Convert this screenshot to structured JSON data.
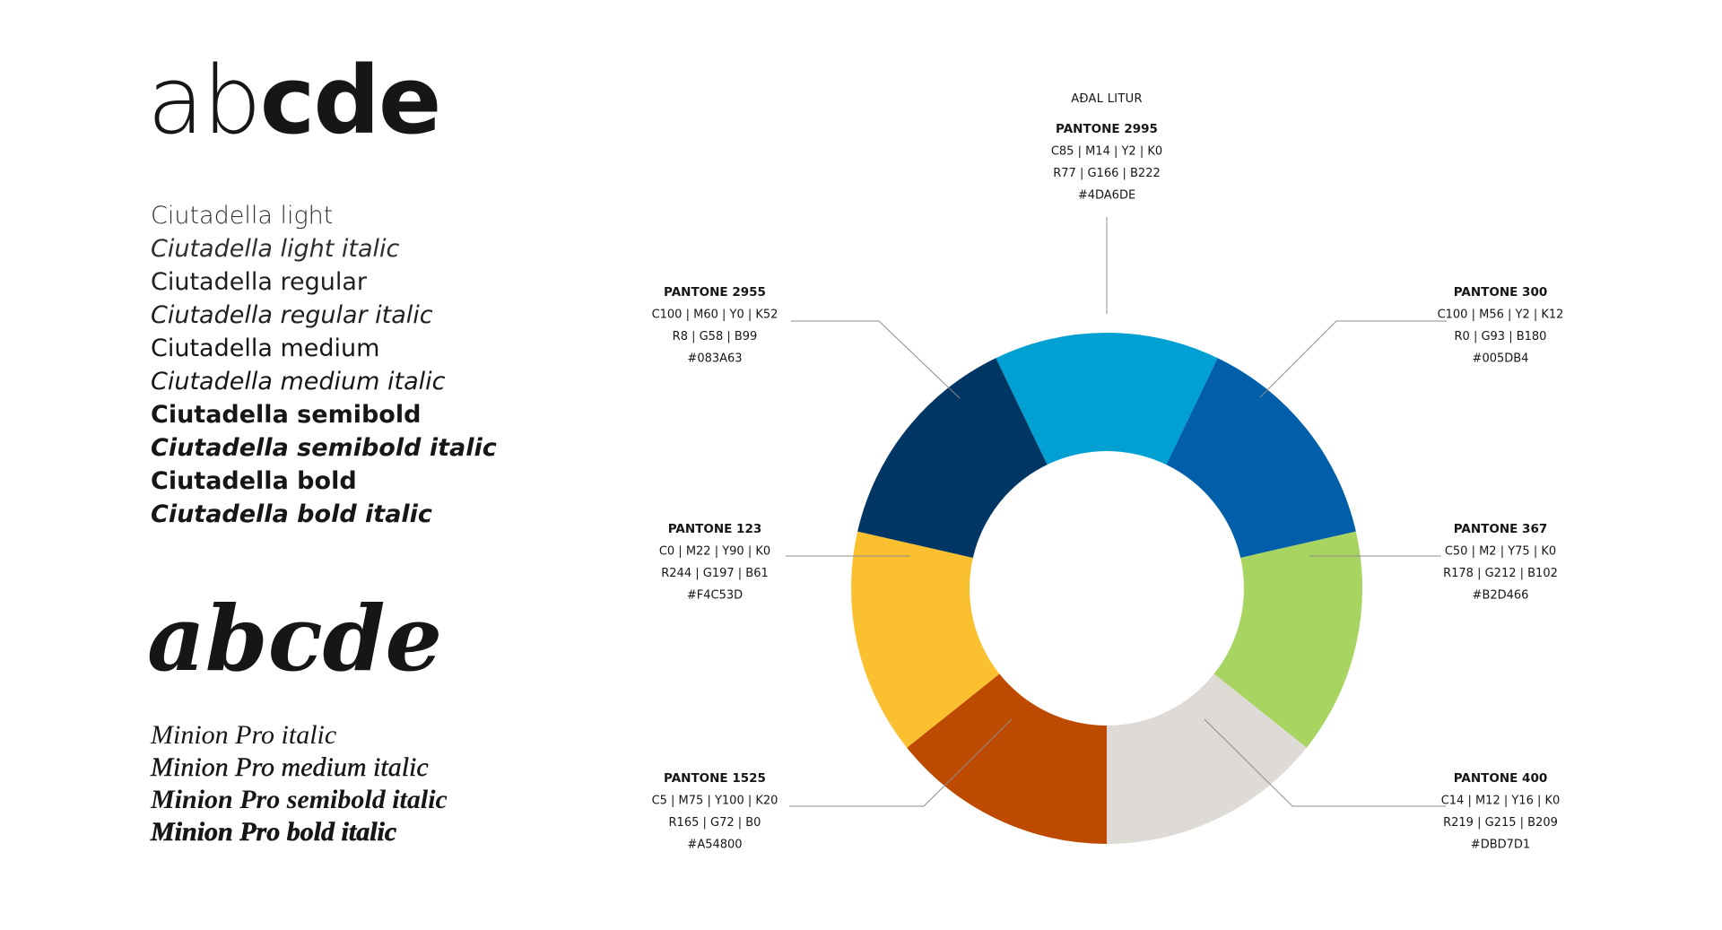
{
  "typography": {
    "sans": {
      "sample_light": "ab",
      "sample_heavy": "cde",
      "weights": [
        {
          "label": "Ciutadella light",
          "weight": "light",
          "italic": false
        },
        {
          "label": "Ciutadella light italic",
          "weight": "light",
          "italic": true
        },
        {
          "label": "Ciutadella regular",
          "weight": "regular",
          "italic": false
        },
        {
          "label": "Ciutadella regular italic",
          "weight": "regular",
          "italic": true
        },
        {
          "label": "Ciutadella medium",
          "weight": "medium",
          "italic": false
        },
        {
          "label": "Ciutadella medium italic",
          "weight": "medium",
          "italic": true
        },
        {
          "label": "Ciutadella semibold",
          "weight": "semibold",
          "italic": false
        },
        {
          "label": "Ciutadella semibold italic",
          "weight": "semibold",
          "italic": true
        },
        {
          "label": "Ciutadella bold",
          "weight": "bold",
          "italic": false
        },
        {
          "label": "Ciutadella bold italic",
          "weight": "bold",
          "italic": true
        }
      ]
    },
    "serif": {
      "sample": "abcde",
      "weights": [
        {
          "label": "Minion Pro italic",
          "weight": "regular"
        },
        {
          "label": "Minion Pro medium italic",
          "weight": "medium"
        },
        {
          "label": "Minion Pro semibold italic",
          "weight": "semibold"
        },
        {
          "label": "Minion Pro bold italic",
          "weight": "bold"
        }
      ]
    }
  },
  "palette": {
    "primary_heading": "AÐAL LITUR",
    "colors": [
      {
        "id": "pantone-2995",
        "name": "PANTONE 2995",
        "cmyk": "C85 | M14 | Y2 | K0",
        "rgb": "R77 | G166 | B222",
        "hex": "#4DA6DE",
        "swatch": "#00A0D2",
        "primary": true
      },
      {
        "id": "pantone-300",
        "name": "PANTONE 300",
        "cmyk": "C100 | M56 | Y2 | K12",
        "rgb": "R0 | G93 | B180",
        "hex": "#005DB4",
        "swatch": "#005FA8"
      },
      {
        "id": "pantone-367",
        "name": "PANTONE 367",
        "cmyk": "C50 | M2 | Y75 | K0",
        "rgb": "R178 | G212 | B102",
        "hex": "#B2D466",
        "swatch": "#A8D462"
      },
      {
        "id": "pantone-400",
        "name": "PANTONE 400",
        "cmyk": "C14 | M12 | Y16 | K0",
        "rgb": "R219 | G215 | B209",
        "hex": "#DBD7D1",
        "swatch": "#DEDAD5"
      },
      {
        "id": "pantone-1525",
        "name": "PANTONE 1525",
        "cmyk": "C5 | M75 | Y100 | K20",
        "rgb": "R165 | G72 | B0",
        "hex": "#A54800",
        "swatch": "#BE4A00"
      },
      {
        "id": "pantone-123",
        "name": "PANTONE 123",
        "cmyk": "C0 | M22 | Y90 | K0",
        "rgb": "R244 | G197 | B61",
        "hex": "#F4C53D",
        "swatch": "#FBC02F"
      },
      {
        "id": "pantone-2955",
        "name": "PANTONE 2955",
        "cmyk": "C100 | M60 | Y0 | K52",
        "rgb": "R8 | G58 | B99",
        "hex": "#083A63",
        "swatch": "#003663"
      }
    ],
    "leader_color": "#8c8c8c"
  }
}
